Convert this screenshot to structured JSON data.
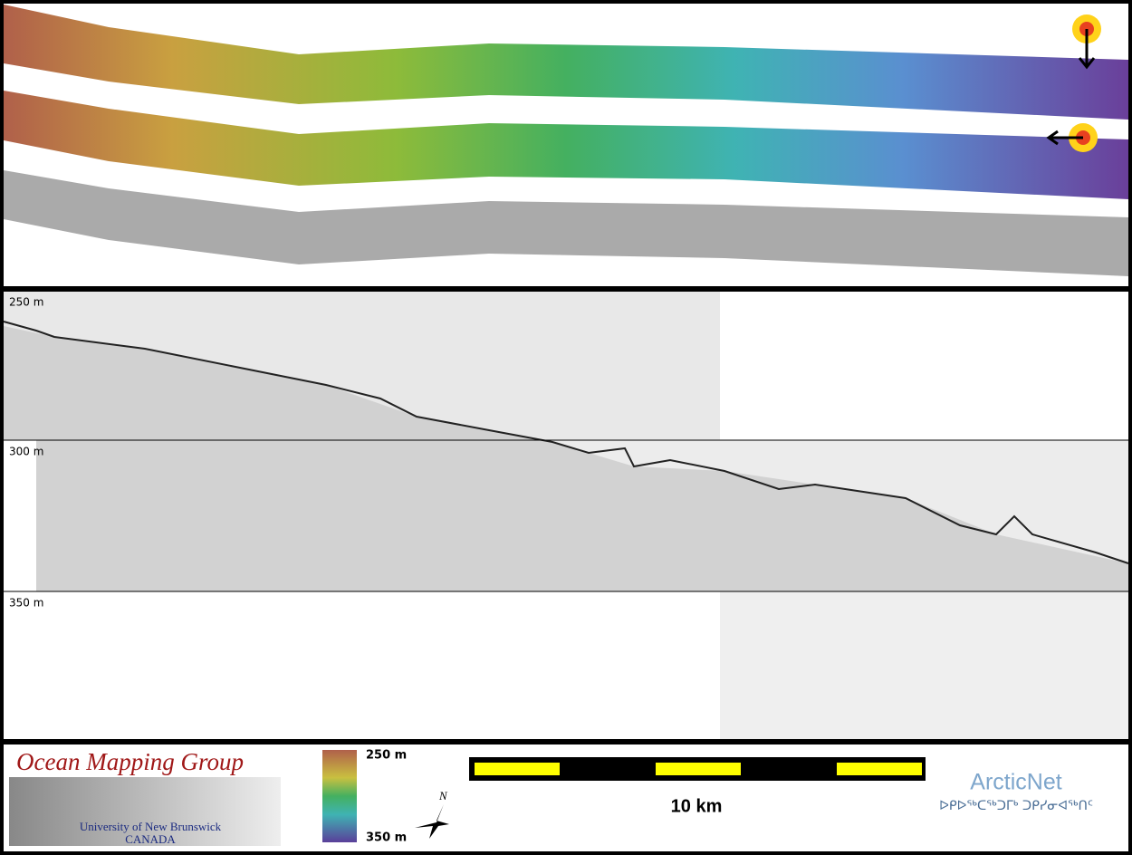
{
  "profile": {
    "depth_labels": [
      "250 m",
      "300 m",
      "350 m"
    ]
  },
  "footer": {
    "logo": {
      "title": "Ocean Mapping Group",
      "university": "University of New Brunswick",
      "country": "CANADA"
    },
    "colorbar": {
      "top_label": "250 m",
      "bottom_label": "350 m"
    },
    "north": "N",
    "scale_bar": "10 km",
    "partner": {
      "name": "ArcticNet",
      "syllabics": "ᐅᑭᐅᖅᑕᖅᑐᒥᒃ ᑐᑭᓯᓂᐊᖅᑎᑦ"
    }
  }
}
